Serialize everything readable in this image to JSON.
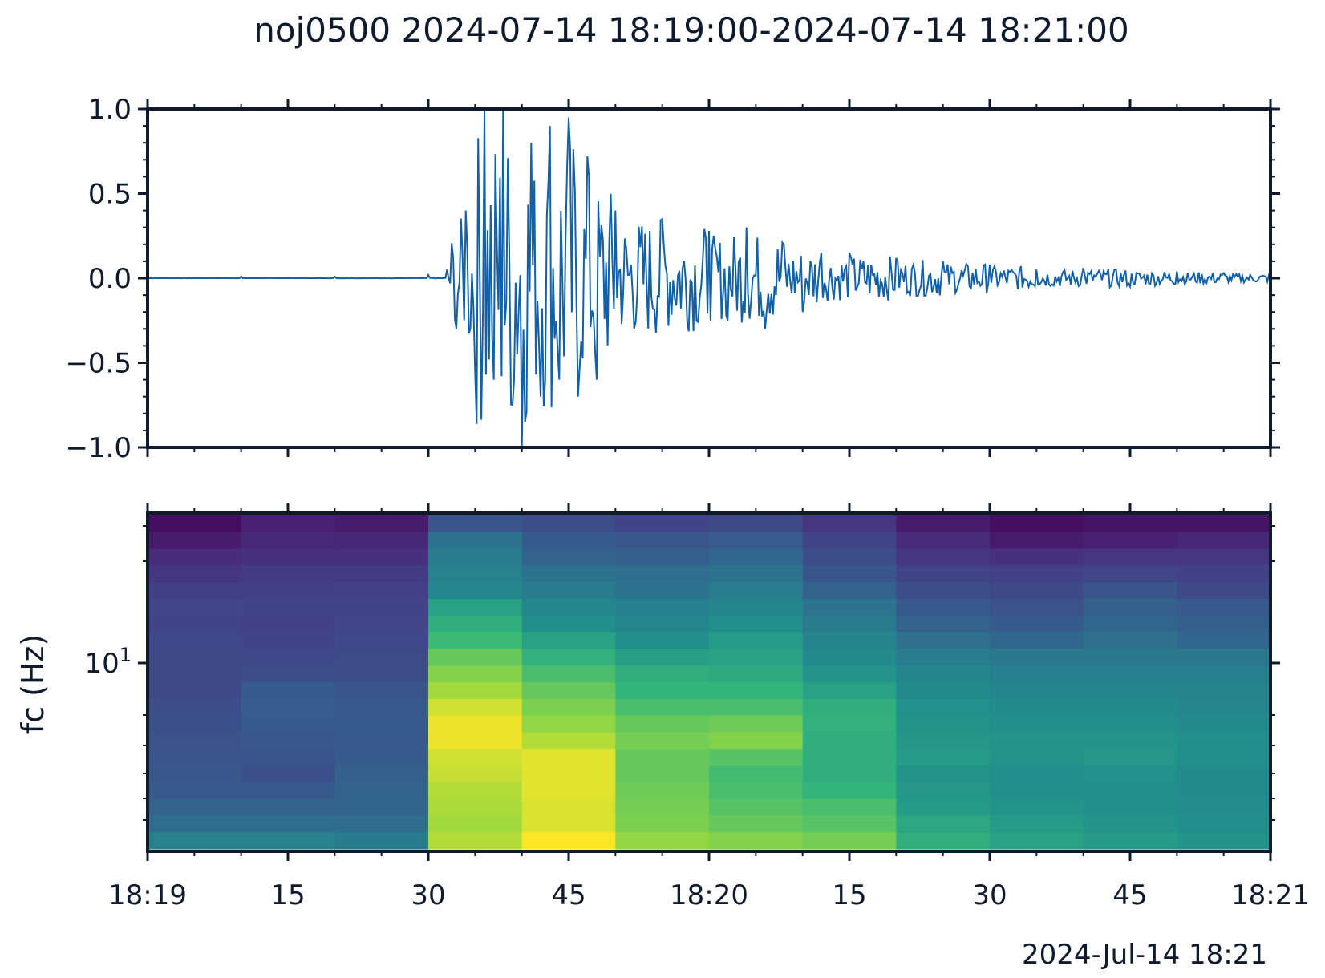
{
  "chart_data": [
    {
      "type": "line",
      "title": "noj0500 2024-07-14 18:19:00-2024-07-14 18:21:00",
      "ylim": [
        -1.0,
        1.0
      ],
      "yticks": [
        1.0,
        0.5,
        0.0,
        -0.5,
        -1.0
      ],
      "ytick_labels": [
        "1.0",
        "0.5",
        "0.0",
        "−0.5",
        "−1.0"
      ],
      "grid": false,
      "series": [
        {
          "x_seconds": [
            0,
            10,
            20,
            30,
            32,
            33,
            34,
            35,
            36,
            37,
            38,
            39,
            40,
            41,
            42,
            43,
            44,
            45,
            46,
            47,
            48,
            50,
            55,
            60,
            62,
            64,
            66,
            68,
            70,
            72,
            75,
            80,
            85,
            90,
            95,
            100,
            105,
            110,
            115,
            120
          ],
          "y": [
            0.0,
            0.01,
            0.01,
            0.02,
            0.05,
            -0.3,
            0.4,
            -0.55,
            1.0,
            -0.6,
            1.0,
            -0.75,
            -1.0,
            0.8,
            -0.7,
            0.9,
            -0.6,
            0.95,
            -0.7,
            0.72,
            -0.6,
            0.4,
            0.35,
            0.28,
            -0.25,
            0.3,
            -0.3,
            0.2,
            -0.2,
            0.15,
            0.15,
            0.12,
            0.1,
            0.08,
            0.05,
            0.06,
            -0.05,
            0.04,
            0.03,
            0.0
          ],
          "color": "#1060aa"
        }
      ]
    },
    {
      "type": "heatmap",
      "ylabel": "fc (Hz)",
      "yscale": "log",
      "ytick_labels": [
        "10",
        "1"
      ],
      "x_start": "18:19:00",
      "x_end": "18:21:00",
      "xtick_labels": [
        "18:19",
        "15",
        "30",
        "45",
        "18:20",
        "15",
        "30",
        "45",
        "18:21"
      ],
      "offset_label": "2024-Jul-14 18:21",
      "colormap": "viridis",
      "columns": 12,
      "rows": 20,
      "values": [
        [
          0.05,
          0.12,
          0.1,
          0.33,
          0.3,
          0.25,
          0.28,
          0.2,
          0.1,
          0.05,
          0.07,
          0.07
        ],
        [
          0.1,
          0.15,
          0.14,
          0.48,
          0.36,
          0.34,
          0.37,
          0.25,
          0.16,
          0.1,
          0.12,
          0.14
        ],
        [
          0.16,
          0.18,
          0.18,
          0.52,
          0.4,
          0.38,
          0.42,
          0.3,
          0.2,
          0.18,
          0.2,
          0.2
        ],
        [
          0.2,
          0.22,
          0.22,
          0.55,
          0.48,
          0.45,
          0.48,
          0.33,
          0.25,
          0.24,
          0.26,
          0.24
        ],
        [
          0.23,
          0.23,
          0.24,
          0.58,
          0.52,
          0.48,
          0.53,
          0.4,
          0.3,
          0.28,
          0.33,
          0.28
        ],
        [
          0.26,
          0.25,
          0.25,
          0.68,
          0.58,
          0.54,
          0.57,
          0.48,
          0.35,
          0.32,
          0.38,
          0.35
        ],
        [
          0.25,
          0.24,
          0.26,
          0.72,
          0.62,
          0.58,
          0.62,
          0.52,
          0.4,
          0.36,
          0.42,
          0.38
        ],
        [
          0.27,
          0.25,
          0.27,
          0.76,
          0.68,
          0.62,
          0.66,
          0.56,
          0.46,
          0.42,
          0.46,
          0.42
        ],
        [
          0.28,
          0.27,
          0.29,
          0.82,
          0.73,
          0.67,
          0.68,
          0.6,
          0.53,
          0.5,
          0.5,
          0.5
        ],
        [
          0.28,
          0.3,
          0.3,
          0.86,
          0.78,
          0.72,
          0.71,
          0.64,
          0.57,
          0.54,
          0.54,
          0.54
        ],
        [
          0.28,
          0.36,
          0.33,
          0.9,
          0.82,
          0.74,
          0.74,
          0.68,
          0.6,
          0.57,
          0.57,
          0.56
        ],
        [
          0.3,
          0.37,
          0.35,
          0.95,
          0.85,
          0.78,
          0.78,
          0.72,
          0.63,
          0.6,
          0.6,
          0.58
        ],
        [
          0.31,
          0.36,
          0.36,
          0.98,
          0.88,
          0.82,
          0.83,
          0.73,
          0.64,
          0.62,
          0.62,
          0.6
        ],
        [
          0.32,
          0.34,
          0.35,
          0.98,
          0.92,
          0.84,
          0.86,
          0.72,
          0.65,
          0.64,
          0.64,
          0.62
        ],
        [
          0.33,
          0.33,
          0.36,
          0.95,
          0.97,
          0.82,
          0.8,
          0.72,
          0.66,
          0.64,
          0.65,
          0.62
        ],
        [
          0.34,
          0.31,
          0.38,
          0.94,
          0.97,
          0.82,
          0.77,
          0.72,
          0.64,
          0.62,
          0.63,
          0.6
        ],
        [
          0.35,
          0.35,
          0.4,
          0.92,
          0.97,
          0.83,
          0.78,
          0.74,
          0.65,
          0.62,
          0.62,
          0.6
        ],
        [
          0.4,
          0.4,
          0.41,
          0.91,
          0.96,
          0.84,
          0.8,
          0.78,
          0.66,
          0.64,
          0.62,
          0.61
        ],
        [
          0.45,
          0.45,
          0.44,
          0.9,
          0.96,
          0.85,
          0.82,
          0.8,
          0.7,
          0.66,
          0.64,
          0.62
        ],
        [
          0.55,
          0.55,
          0.52,
          0.92,
          1.0,
          0.88,
          0.86,
          0.84,
          0.72,
          0.68,
          0.66,
          0.64
        ]
      ]
    }
  ]
}
